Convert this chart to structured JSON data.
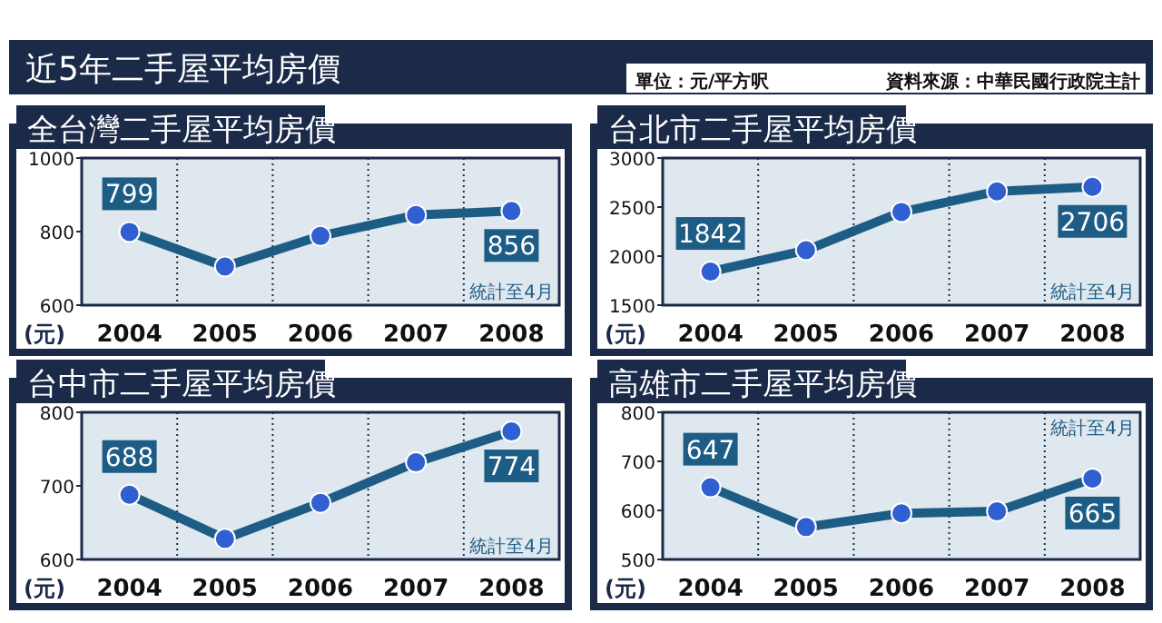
{
  "chart_data": [
    {
      "type": "other",
      "title": "近5年二手屋平均房價",
      "annotations": [
        "單位：元/平方呎",
        "資料來源：中華民國行政院主計"
      ]
    },
    {
      "type": "line",
      "title": "全台灣二手屋平均房價",
      "ylabel": "(元)",
      "categories": [
        "2004",
        "2005",
        "2006",
        "2007",
        "2008"
      ],
      "series": [
        {
          "color": "#1d5c85",
          "values": [
            799,
            705,
            788,
            845,
            856
          ],
          "value_labels": [
            "799",
            null,
            null,
            null,
            "856"
          ]
        }
      ],
      "ylim": [
        600,
        1000
      ],
      "yticks": [
        600,
        800,
        1000
      ],
      "marker": "circle",
      "annotations": [
        "統計至4月"
      ]
    },
    {
      "type": "line",
      "title": "台北市二手屋平均房價",
      "ylabel": "(元)",
      "categories": [
        "2004",
        "2005",
        "2006",
        "2007",
        "2008"
      ],
      "series": [
        {
          "color": "#1d5c85",
          "values": [
            1842,
            2060,
            2450,
            2660,
            2706
          ],
          "value_labels": [
            "1842",
            null,
            null,
            null,
            "2706"
          ]
        }
      ],
      "ylim": [
        1500,
        3000
      ],
      "yticks": [
        1500,
        2000,
        2500,
        3000
      ],
      "marker": "circle",
      "annotations": [
        "統計至4月"
      ]
    },
    {
      "type": "line",
      "title": "台中市二手屋平均房價",
      "ylabel": "(元)",
      "categories": [
        "2004",
        "2005",
        "2006",
        "2007",
        "2008"
      ],
      "series": [
        {
          "color": "#1d5c85",
          "values": [
            688,
            628,
            677,
            732,
            774
          ],
          "value_labels": [
            "688",
            null,
            null,
            null,
            "774"
          ]
        }
      ],
      "ylim": [
        600,
        800
      ],
      "yticks": [
        600,
        700,
        800
      ],
      "marker": "circle",
      "annotations": [
        "統計至4月"
      ]
    },
    {
      "type": "line",
      "title": "高雄市二手屋平均房價",
      "ylabel": "(元)",
      "categories": [
        "2004",
        "2005",
        "2006",
        "2007",
        "2008"
      ],
      "series": [
        {
          "color": "#1d5c85",
          "values": [
            647,
            566,
            594,
            598,
            665
          ],
          "value_labels": [
            "647",
            null,
            null,
            null,
            "665"
          ]
        }
      ],
      "ylim": [
        500,
        800
      ],
      "yticks": [
        500,
        600,
        700,
        800
      ],
      "marker": "circle",
      "annotations": [
        "統計至4月"
      ]
    }
  ]
}
